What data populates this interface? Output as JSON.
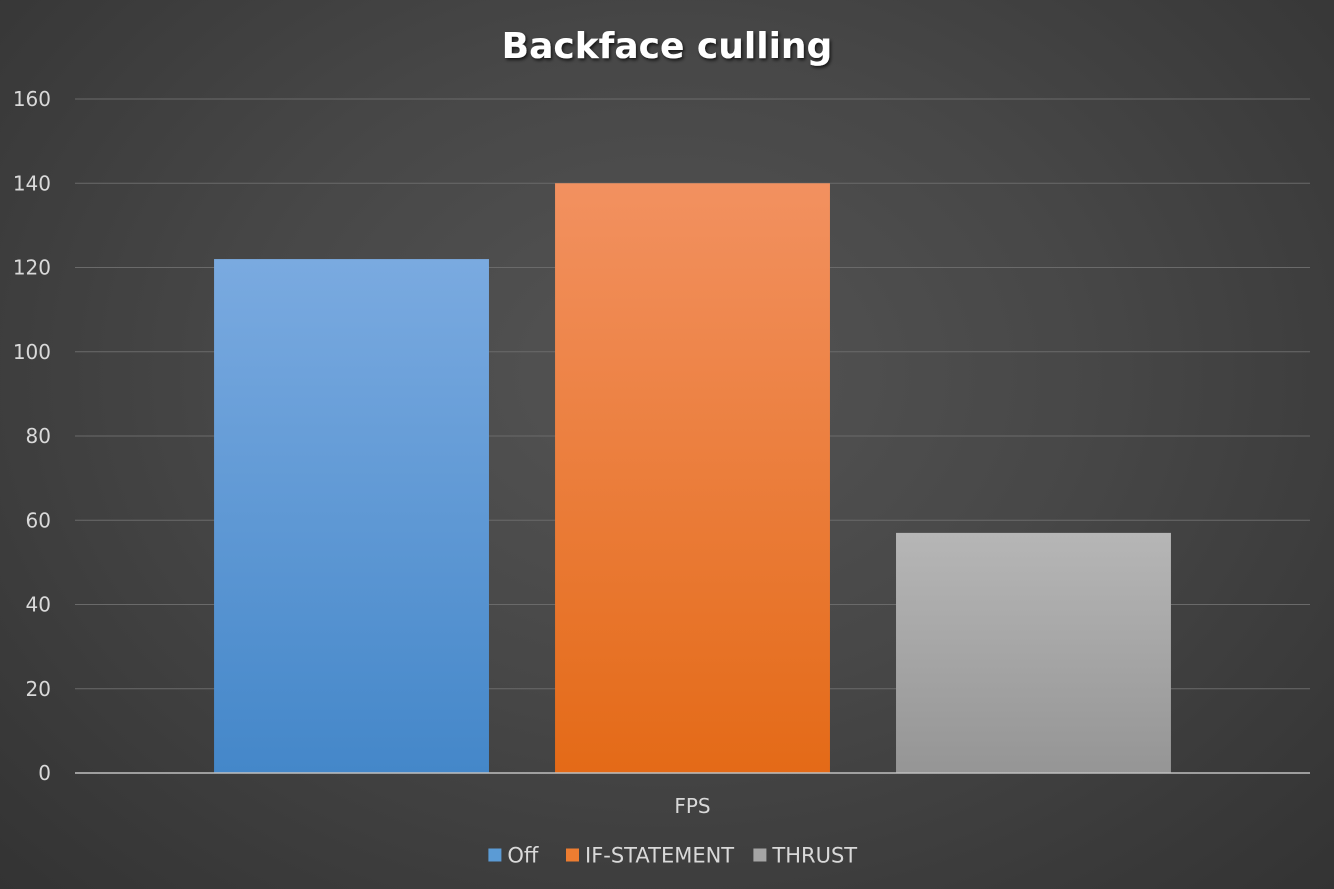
{
  "chart_data": {
    "type": "bar",
    "title": "Backface culling",
    "categories": [
      "FPS"
    ],
    "series": [
      {
        "name": "Off",
        "values": [
          122
        ],
        "color": "#5b9bd5"
      },
      {
        "name": "IF-STATEMENT",
        "values": [
          140
        ],
        "color": "#ed7d31"
      },
      {
        "name": "THRUST",
        "values": [
          57
        ],
        "color": "#a5a5a5"
      }
    ],
    "xlabel": "",
    "ylabel": "",
    "ylim": [
      0,
      160
    ],
    "yticks": [
      0,
      20,
      40,
      60,
      80,
      100,
      120,
      140,
      160
    ],
    "grid": true,
    "legend": "bottom"
  }
}
